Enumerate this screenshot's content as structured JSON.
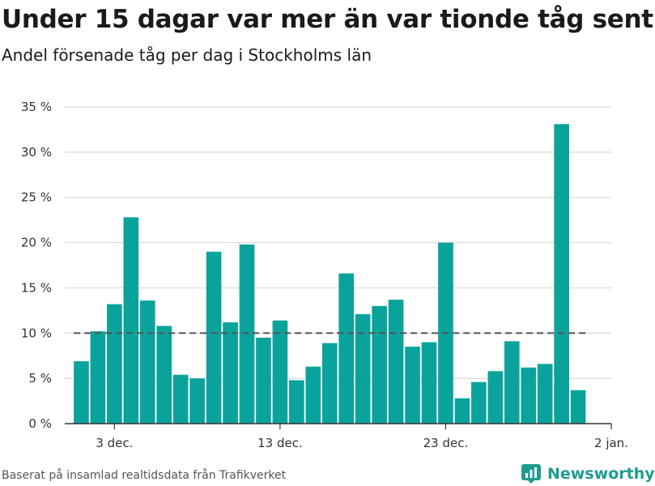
{
  "title": "Under 15 dagar var mer än var tionde tåg sent",
  "subtitle": "Andel försenade tåg per dag i Stockholms län",
  "source": "Baserat på insamlad realtidsdata från Trafikverket",
  "brand": {
    "name": "Newsworthy",
    "icon": "newsworthy-logo-icon"
  },
  "colors": {
    "bar": "#0aa39b",
    "reference_line": "#555555",
    "grid": "#d9d9d9"
  },
  "chart_data": {
    "type": "bar",
    "x": [
      "2023-12-01",
      "2023-12-02",
      "2023-12-03",
      "2023-12-04",
      "2023-12-05",
      "2023-12-06",
      "2023-12-07",
      "2023-12-08",
      "2023-12-09",
      "2023-12-10",
      "2023-12-11",
      "2023-12-12",
      "2023-12-13",
      "2023-12-14",
      "2023-12-15",
      "2023-12-16",
      "2023-12-17",
      "2023-12-18",
      "2023-12-19",
      "2023-12-20",
      "2023-12-21",
      "2023-12-22",
      "2023-12-23",
      "2023-12-24",
      "2023-12-25",
      "2023-12-26",
      "2023-12-27",
      "2023-12-28",
      "2023-12-29",
      "2023-12-30",
      "2023-12-31"
    ],
    "values": [
      6.9,
      10.2,
      13.2,
      22.8,
      13.6,
      10.8,
      5.4,
      5.0,
      19.0,
      11.2,
      19.8,
      9.5,
      11.4,
      4.8,
      6.3,
      8.9,
      16.6,
      12.1,
      13.0,
      13.7,
      8.5,
      9.0,
      20.0,
      2.8,
      4.6,
      5.8,
      9.1,
      6.2,
      6.6,
      33.1,
      3.7
    ],
    "reference_line": 10,
    "ylim": [
      0,
      35
    ],
    "y_ticks": [
      0,
      5,
      10,
      15,
      20,
      25,
      30,
      35
    ],
    "y_tick_labels": [
      "0 %",
      "5 %",
      "10 %",
      "15 %",
      "20 %",
      "25 %",
      "30 %",
      "35 %"
    ],
    "x_ticks": [
      "2023-12-03",
      "2023-12-13",
      "2023-12-23",
      "2024-01-02"
    ],
    "x_tick_labels": [
      "3 dec.",
      "13 dec.",
      "23 dec.",
      "2 jan."
    ],
    "xlim": [
      "2023-11-30",
      "2024-01-02"
    ],
    "grid": true,
    "legend": "none"
  }
}
